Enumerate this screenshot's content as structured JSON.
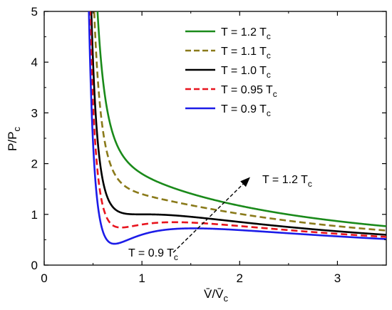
{
  "chart_data": {
    "type": "line",
    "title": "",
    "xlabel": "V̄/V̄c",
    "ylabel": "P/Pc",
    "xlim": [
      0,
      3.5
    ],
    "ylim": [
      0,
      5
    ],
    "x_ticks": [
      "0",
      "1",
      "2",
      "3"
    ],
    "y_ticks": [
      "0",
      "1",
      "2",
      "3",
      "4",
      "5"
    ],
    "grid": false,
    "legend_position": "top-right",
    "series": [
      {
        "name": "T = 1.2 Tc",
        "color": "#1a8a1a",
        "dash": "solid",
        "reduced_temperature": 1.2
      },
      {
        "name": "T = 1.1 Tc",
        "color": "#8a7a1a",
        "dash": "dashed",
        "reduced_temperature": 1.1
      },
      {
        "name": "T = 1.0 Tc",
        "color": "#000000",
        "dash": "solid",
        "reduced_temperature": 1.0
      },
      {
        "name": "T = 0.95 Tc",
        "color": "#e8141e",
        "dash": "dashed",
        "reduced_temperature": 0.95
      },
      {
        "name": "T = 0.9 Tc",
        "color": "#1c1ce8",
        "dash": "solid",
        "reduced_temperature": 0.9
      }
    ],
    "annotations": [
      {
        "label": "T = 1.2 Tc",
        "color": "#1a8a1a"
      },
      {
        "label": "T = 0.9 Tc",
        "color": "#1c1ce8"
      }
    ]
  }
}
